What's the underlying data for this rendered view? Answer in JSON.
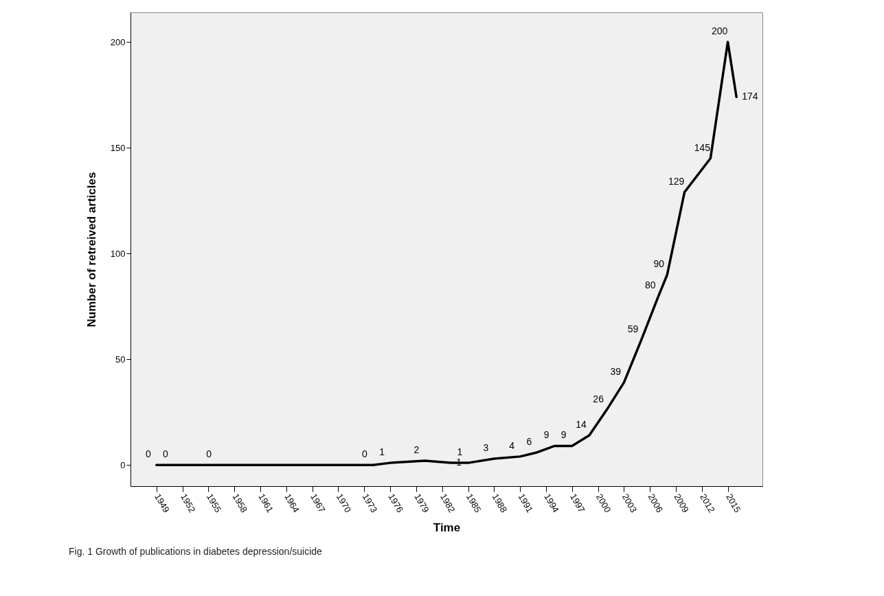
{
  "chart_data": {
    "type": "line",
    "xlabel": "Time",
    "ylabel": "Number of retreived articles",
    "annotations": [
      "Fig. 1 Growth of publications in diabetes depression/suicide"
    ],
    "x": [
      1949,
      1951,
      1956,
      1974,
      1976,
      1980,
      1983,
      1985,
      1988,
      1991,
      1993,
      1995,
      1997,
      1999,
      2001,
      2003,
      2005,
      2007,
      2008,
      2010,
      2013,
      2015,
      2016
    ],
    "series": [
      {
        "color": "#000000",
        "values": [
          0,
          0,
          0,
          0,
          1,
          2,
          1,
          1,
          3,
          4,
          6,
          9,
          9,
          14,
          26,
          39,
          59,
          80,
          90,
          129,
          145,
          200,
          174
        ]
      }
    ],
    "xlim": [
      1946,
      2019
    ],
    "xticks": [
      1949,
      1952,
      1955,
      1958,
      1961,
      1964,
      1967,
      1970,
      1973,
      1976,
      1979,
      1982,
      1985,
      1988,
      1991,
      1994,
      1997,
      2000,
      2003,
      2006,
      2009,
      2012,
      2015
    ],
    "ylim": [
      -10,
      214
    ],
    "yticks": [
      0,
      50,
      100,
      150,
      200
    ],
    "grid": false,
    "data_labels": true,
    "line_style": "solid",
    "marker": "none"
  }
}
